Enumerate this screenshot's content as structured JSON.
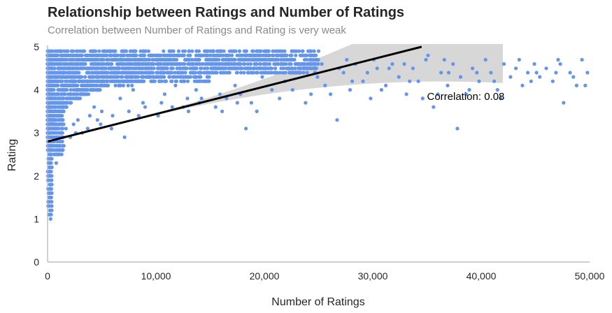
{
  "chart_data": {
    "type": "scatter",
    "title": "Relationship between Ratings and Number of Ratings",
    "subtitle": "Correlation between Number of Ratings and Rating is very weak",
    "xlabel": "Number of Ratings",
    "ylabel": "Rating",
    "xlim": [
      0,
      50000
    ],
    "ylim": [
      0,
      5
    ],
    "xticks": [
      0,
      10000,
      20000,
      30000,
      40000,
      50000
    ],
    "xtick_labels": [
      "0",
      "10,000",
      "20,000",
      "30,000",
      "40,000",
      "50,000"
    ],
    "yticks": [
      0,
      1,
      2,
      3,
      4,
      5
    ],
    "ytick_labels": [
      "0",
      "1",
      "2",
      "3",
      "4",
      "5"
    ],
    "grid": false,
    "point_color": "#6495ED",
    "regression_line": {
      "x": [
        0,
        34500
      ],
      "y": [
        2.8,
        5.0
      ],
      "color": "#000000"
    },
    "confidence_band_color": "#d3d3d3",
    "annotation": {
      "text": "Correlation: 0.08",
      "x": 35000,
      "y": 3.85
    },
    "points": [
      [
        26700,
        3.3
      ],
      [
        37800,
        3.1
      ],
      [
        18300,
        3.1
      ],
      [
        16100,
        3.5
      ],
      [
        5900,
        3.1
      ],
      [
        7100,
        2.9
      ],
      [
        10200,
        3.4
      ],
      [
        12500,
        3.6
      ],
      [
        14200,
        3.8
      ],
      [
        17800,
        3.9
      ],
      [
        19300,
        3.5
      ],
      [
        21400,
        3.8
      ],
      [
        22600,
        4.0
      ],
      [
        23800,
        3.7
      ],
      [
        24900,
        4.3
      ],
      [
        25600,
        4.1
      ],
      [
        26100,
        3.9
      ],
      [
        27300,
        4.4
      ],
      [
        27900,
        4.0
      ],
      [
        28400,
        4.6
      ],
      [
        29100,
        4.2
      ],
      [
        29800,
        3.8
      ],
      [
        30400,
        4.5
      ],
      [
        31200,
        4.1
      ],
      [
        31800,
        4.6
      ],
      [
        32400,
        4.3
      ],
      [
        33100,
        3.9
      ],
      [
        33700,
        4.5
      ],
      [
        34200,
        4.2
      ],
      [
        34900,
        4.7
      ],
      [
        35600,
        3.6
      ],
      [
        36300,
        4.4
      ],
      [
        36900,
        4.1
      ],
      [
        37400,
        4.6
      ],
      [
        38100,
        4.3
      ],
      [
        38600,
        3.9
      ],
      [
        39200,
        4.5
      ],
      [
        39800,
        4.2
      ],
      [
        40400,
        4.7
      ],
      [
        40900,
        4.4
      ],
      [
        41500,
        4.0
      ],
      [
        42100,
        4.6
      ],
      [
        42700,
        4.3
      ],
      [
        43200,
        4.5
      ],
      [
        43800,
        4.1
      ],
      [
        44300,
        4.4
      ],
      [
        44900,
        4.6
      ],
      [
        45400,
        4.3
      ],
      [
        46000,
        4.5
      ],
      [
        46600,
        4.2
      ],
      [
        47100,
        4.7
      ],
      [
        47600,
        3.7
      ],
      [
        48200,
        4.4
      ],
      [
        48800,
        4.1
      ],
      [
        49300,
        4.7
      ],
      [
        49800,
        4.4
      ],
      [
        32900,
        4.6
      ],
      [
        34600,
        3.8
      ],
      [
        37000,
        4.4
      ],
      [
        39600,
        4.4
      ],
      [
        41200,
        4.2
      ],
      [
        43500,
        4.7
      ],
      [
        45100,
        4.4
      ],
      [
        46900,
        4.4
      ],
      [
        48500,
        4.3
      ],
      [
        49600,
        4.1
      ],
      [
        30800,
        4.0
      ],
      [
        29500,
        4.4
      ],
      [
        28100,
        4.2
      ],
      [
        26900,
        4.5
      ],
      [
        25300,
        4.6
      ],
      [
        24300,
        3.9
      ],
      [
        23100,
        4.4
      ],
      [
        21900,
        4.2
      ],
      [
        20700,
        4.0
      ],
      [
        19800,
        4.3
      ],
      [
        18800,
        3.7
      ],
      [
        17300,
        4.1
      ],
      [
        15900,
        3.9
      ],
      [
        14900,
        4.2
      ],
      [
        13700,
        4.0
      ],
      [
        12900,
        3.8
      ],
      [
        11800,
        4.1
      ],
      [
        10800,
        3.9
      ],
      [
        9700,
        4.2
      ],
      [
        8800,
        3.7
      ],
      [
        7900,
        4.0
      ],
      [
        6700,
        3.8
      ],
      [
        5200,
        4.1
      ],
      [
        4300,
        3.6
      ],
      [
        3500,
        3.9
      ],
      [
        22200,
        4.7
      ],
      [
        24500,
        4.8
      ],
      [
        20200,
        4.6
      ],
      [
        18600,
        4.5
      ],
      [
        16700,
        4.7
      ],
      [
        15100,
        4.4
      ],
      [
        13300,
        4.6
      ],
      [
        11200,
        4.8
      ],
      [
        9300,
        4.5
      ],
      [
        8100,
        4.9
      ],
      [
        6300,
        4.7
      ],
      [
        5500,
        4.9
      ],
      [
        4700,
        4.8
      ],
      [
        12100,
        4.9
      ],
      [
        14500,
        4.8
      ],
      [
        17000,
        4.9
      ],
      [
        19000,
        4.8
      ],
      [
        35100,
        4.8
      ],
      [
        36600,
        4.7
      ],
      [
        27600,
        4.7
      ],
      [
        30100,
        4.7
      ],
      [
        31500,
        4.5
      ],
      [
        33400,
        4.2
      ],
      [
        36000,
        3.9
      ],
      [
        38900,
        4.0
      ],
      [
        41800,
        3.8
      ],
      [
        44600,
        4.2
      ],
      [
        47300,
        4.6
      ],
      [
        2800,
        3.3
      ],
      [
        3200,
        3.0
      ],
      [
        2100,
        2.9
      ],
      [
        1500,
        2.7
      ],
      [
        1100,
        2.6
      ],
      [
        900,
        2.9
      ],
      [
        1700,
        3.1
      ],
      [
        2400,
        3.2
      ],
      [
        3900,
        3.4
      ],
      [
        4600,
        3.3
      ],
      [
        5000,
        3.5
      ],
      [
        6000,
        3.4
      ],
      [
        7500,
        3.5
      ],
      [
        8400,
        3.4
      ],
      [
        9000,
        3.6
      ],
      [
        10500,
        3.7
      ],
      [
        11500,
        3.6
      ],
      [
        13000,
        3.5
      ],
      [
        14000,
        3.7
      ],
      [
        15500,
        3.6
      ],
      [
        16500,
        3.8
      ],
      [
        17500,
        3.7
      ],
      [
        1300,
        2.5
      ],
      [
        800,
        2.3
      ],
      [
        700,
        2.6
      ],
      [
        2600,
        3.0
      ],
      [
        3700,
        3.1
      ],
      [
        4900,
        3.2
      ]
    ]
  }
}
